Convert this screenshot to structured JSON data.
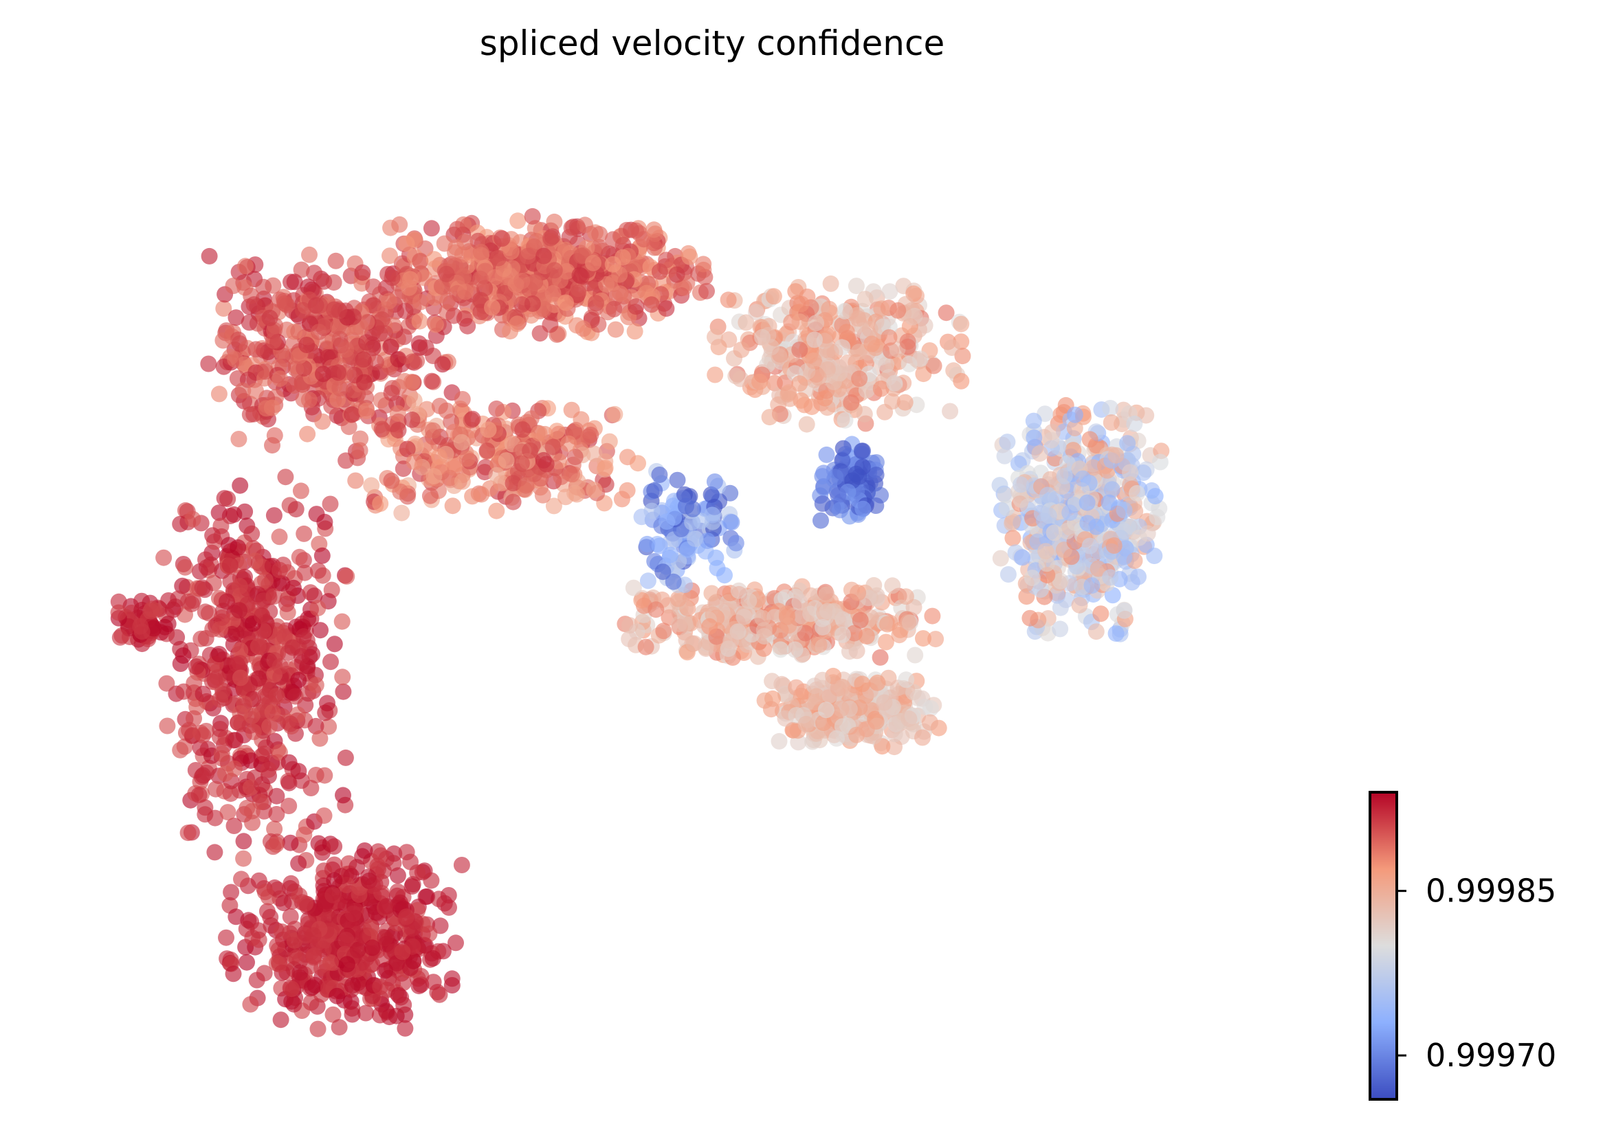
{
  "chart_data": {
    "type": "scatter",
    "title": "spliced velocity confidence",
    "xlabel": "",
    "ylabel": "",
    "axes_visible": false,
    "grid": false,
    "xlim": [
      0,
      100
    ],
    "ylim": [
      0,
      64
    ],
    "colormap": {
      "name": "coolwarm",
      "stops": [
        "#3b4cc0",
        "#8db0fe",
        "#dddddd",
        "#f49a7b",
        "#b40426"
      ],
      "range": [
        0.99966,
        0.99994
      ]
    },
    "colorbar": {
      "placement": "bottom-right",
      "ticks": [
        {
          "value": 0.9997,
          "label": "0.99970"
        },
        {
          "value": 0.99985,
          "label": "0.99985"
        }
      ]
    },
    "regions": [
      {
        "name": "lower-left lobe",
        "n": 480,
        "cx": 21,
        "cy": 9,
        "rx": 9.5,
        "ry": 6.5,
        "v_lo": 0.99991,
        "v_hi": 0.99994
      },
      {
        "name": "left column",
        "n": 520,
        "cx": 14,
        "cy": 27,
        "rx": 7.5,
        "ry": 13,
        "v_lo": 0.9999,
        "v_hi": 0.99994
      },
      {
        "name": "left protrusion",
        "n": 60,
        "cx": 5.5,
        "cy": 30,
        "rx": 2.2,
        "ry": 1.8,
        "v_lo": 0.99991,
        "v_hi": 0.99994
      },
      {
        "name": "upper-left arc",
        "n": 420,
        "cx": 20,
        "cy": 48,
        "rx": 10,
        "ry": 6.5,
        "v_lo": 0.99988,
        "v_hi": 0.99993
      },
      {
        "name": "top arc",
        "n": 560,
        "cx": 37,
        "cy": 53,
        "rx": 13,
        "ry": 4,
        "v_lo": 0.99987,
        "v_hi": 0.99992
      },
      {
        "name": "inner band",
        "n": 300,
        "cx": 33,
        "cy": 41,
        "rx": 12,
        "ry": 4,
        "v_lo": 0.99985,
        "v_hi": 0.99992
      },
      {
        "name": "upper-right arc",
        "n": 340,
        "cx": 60,
        "cy": 48,
        "rx": 10,
        "ry": 5,
        "v_lo": 0.9998,
        "v_hi": 0.99989
      },
      {
        "name": "right end",
        "n": 520,
        "cx": 79,
        "cy": 37,
        "rx": 6.5,
        "ry": 8,
        "v_lo": 0.99973,
        "v_hi": 0.99988
      },
      {
        "name": "lower branch",
        "n": 380,
        "cx": 55,
        "cy": 30,
        "rx": 13,
        "ry": 2.5,
        "v_lo": 0.9998,
        "v_hi": 0.99989
      },
      {
        "name": "bottom lobe",
        "n": 260,
        "cx": 61,
        "cy": 24,
        "rx": 7,
        "ry": 2.5,
        "v_lo": 0.9998,
        "v_hi": 0.99987
      },
      {
        "name": "central low cluster",
        "n": 90,
        "cx": 61,
        "cy": 39,
        "rx": 2.5,
        "ry": 3,
        "v_lo": 0.99966,
        "v_hi": 0.99972
      },
      {
        "name": "central X arms",
        "n": 110,
        "cx": 48,
        "cy": 36,
        "rx": 4,
        "ry": 4,
        "v_lo": 0.99966,
        "v_hi": 0.99978
      }
    ]
  }
}
